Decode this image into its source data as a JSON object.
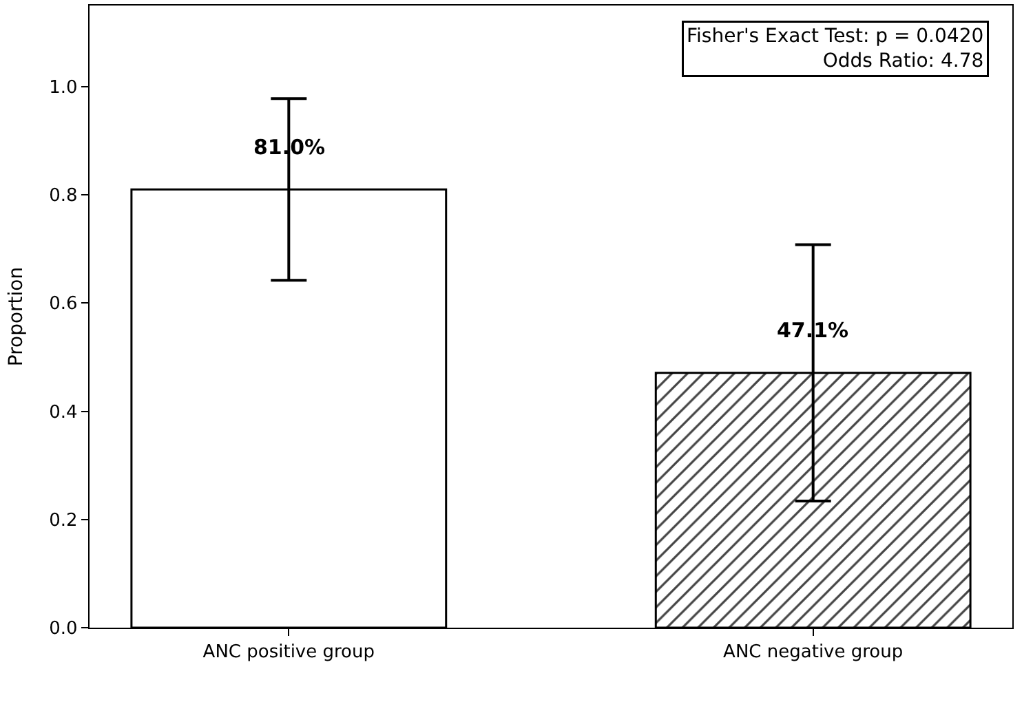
{
  "chart_data": {
    "type": "bar",
    "categories": [
      "ANC positive group",
      "ANC negative group"
    ],
    "values": [
      0.81,
      0.471
    ],
    "errors": [
      0.168,
      0.237
    ],
    "colors": [
      "#ffffff",
      "#000000"
    ],
    "value_labels": [
      "81.0%",
      "47.1%"
    ],
    "ylabel": "Proportion",
    "ylim": [
      0,
      1.15
    ],
    "yticks": [
      {
        "value": 0,
        "label": "0.0"
      },
      {
        "value": 0.2,
        "label": "0.2"
      },
      {
        "value": 0.4,
        "label": "0.4"
      },
      {
        "value": 0.6,
        "label": "0.6"
      },
      {
        "value": 0.8,
        "label": "0.8"
      },
      {
        "value": 1,
        "label": "1.0"
      }
    ],
    "grid": false,
    "annotations": [
      "Fisher's Exact Test: p = 0.0420\nOdds Ratio: 4.78"
    ]
  }
}
